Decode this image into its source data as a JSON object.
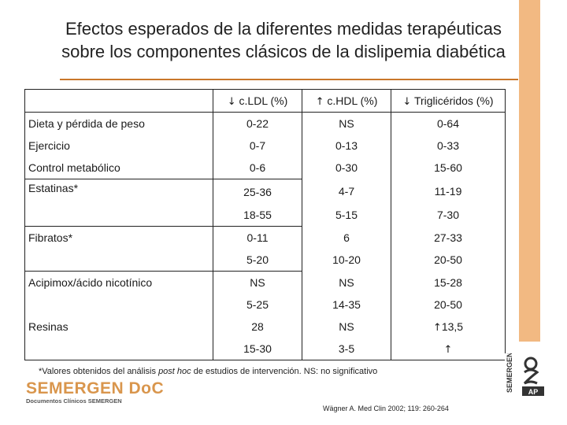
{
  "title": {
    "line1": "Efectos esperados de la diferentes medidas terapéuticas",
    "line2": "sobre los componentes clásicos de la dislipemia diabética"
  },
  "table": {
    "headers": [
      {
        "arrow": "↓",
        "label": "c.LDL (%)"
      },
      {
        "arrow": "↑",
        "label": "c.HDL (%)"
      },
      {
        "arrow": "↓",
        "label": "Triglicéridos (%)"
      }
    ],
    "rows": [
      {
        "label": "Dieta y pérdida de peso",
        "ldl": "0-22",
        "hdl": "NS",
        "tg": "0-64"
      },
      {
        "label": "Ejercicio",
        "ldl": "0-7",
        "hdl": "0-13",
        "tg": "0-33"
      },
      {
        "label": "Control metabólico",
        "ldl": "0-6",
        "hdl": "0-30",
        "tg": "15-60"
      },
      {
        "label": "Estatinas*",
        "ldl": "25-36",
        "hdl": "4-7",
        "tg": "11-19"
      },
      {
        "label": "",
        "ldl": "18-55",
        "hdl": "5-15",
        "tg": "7-30"
      },
      {
        "label": "Fibratos*",
        "ldl": "0-11",
        "hdl": "6",
        "tg": "27-33"
      },
      {
        "label": "",
        "ldl": "5-20",
        "hdl": "10-20",
        "tg": "20-50"
      },
      {
        "label": "Acipimox/ácido nicotínico",
        "ldl": "NS",
        "hdl": "NS",
        "tg": "15-28"
      },
      {
        "label": "",
        "ldl": "5-25",
        "hdl": "14-35",
        "tg": "20-50"
      },
      {
        "label": "Resinas",
        "ldl": "28",
        "hdl": "NS",
        "tg_arrow": "↑",
        "tg": "13,5"
      },
      {
        "label": "",
        "ldl": "15-30",
        "hdl": "3-5",
        "tg_arrow": "↑",
        "tg": ""
      }
    ]
  },
  "footnote": {
    "before": "*Valores obtenidos del análisis ",
    "italic": "post hoc",
    "after": " de estudios de intervención. NS: no significativo"
  },
  "logo": {
    "name": "SEMERGEN DoC",
    "subtitle": "Documentos Clínicos SEMERGEN"
  },
  "citation": "Wägner A. Med Clin 2002; 119: 260-264",
  "badge": {
    "text": "SEMERGEN",
    "sub": "AP"
  },
  "colors": {
    "accent": "#c9772a",
    "side_bar": "#f2b982",
    "logo": "#d9964d"
  }
}
